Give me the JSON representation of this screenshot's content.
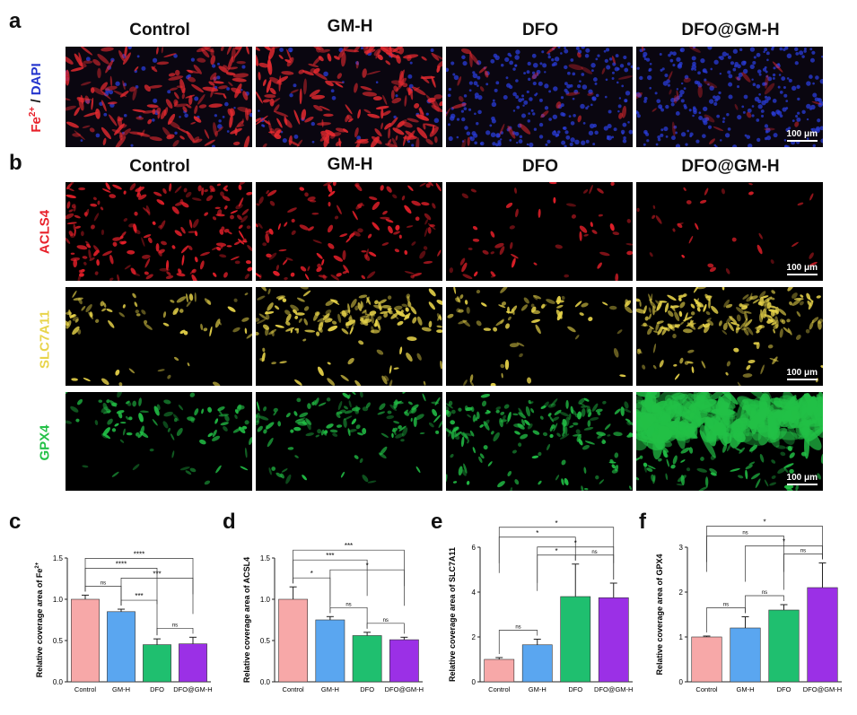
{
  "panel_a": {
    "letter": "a",
    "columns": [
      "Control",
      "GM-H",
      "DFO",
      "DFO@GM-H"
    ],
    "row_label_part1": "Fe",
    "row_label_sup": "2+",
    "row_label_sep": " / ",
    "row_label_part2": "DAPI",
    "scale_bar": "100 μm"
  },
  "panel_b": {
    "letter": "b",
    "columns": [
      "Control",
      "GM-H",
      "DFO",
      "DFO@GM-H"
    ],
    "rows": [
      {
        "label": "ACLS4",
        "color": "#e8202a",
        "scale_bar": "100 μm"
      },
      {
        "label": "SLC7A11",
        "color": "#e8d44a",
        "scale_bar": "100 μm"
      },
      {
        "label": "GPX4",
        "color": "#22c046",
        "scale_bar": "100 μm"
      }
    ]
  },
  "chart_data": [
    {
      "panel": "c",
      "type": "bar",
      "categories": [
        "Control",
        "GM-H",
        "DFO",
        "DFO@GM-H"
      ],
      "values": [
        1.0,
        0.85,
        0.45,
        0.46
      ],
      "errors": [
        0.05,
        0.03,
        0.07,
        0.08
      ],
      "ylabel_main": "Relative coverage area of Fe",
      "ylabel_sup": "2+",
      "ylim": [
        0,
        1.5
      ],
      "ticks": [
        0.0,
        0.5,
        1.0,
        1.5
      ],
      "tick_labels": [
        "0.0",
        "0.5",
        "1.0",
        "1.5"
      ],
      "colors": [
        "#f7a8a8",
        "#5aa6f0",
        "#1fbf6f",
        "#9b30e6"
      ],
      "brackets": [
        {
          "from": 0,
          "to": 3,
          "label": "****",
          "level": 4
        },
        {
          "from": 0,
          "to": 2,
          "label": "****",
          "level": 3
        },
        {
          "from": 1,
          "to": 3,
          "label": "***",
          "level": 2
        },
        {
          "from": 0,
          "to": 1,
          "label": "ns",
          "level": 1
        },
        {
          "from": 1,
          "to": 2,
          "label": "***",
          "level": 1
        },
        {
          "from": 2,
          "to": 3,
          "label": "ns",
          "level": 1
        }
      ]
    },
    {
      "panel": "d",
      "type": "bar",
      "categories": [
        "Control",
        "GM-H",
        "DFO",
        "DFO@GM-H"
      ],
      "values": [
        1.0,
        0.75,
        0.56,
        0.51
      ],
      "errors": [
        0.15,
        0.04,
        0.04,
        0.03
      ],
      "ylabel_main": "Relative coverage area of ACSL4",
      "ylabel_sup": "",
      "ylim": [
        0,
        1.5
      ],
      "ticks": [
        0.0,
        0.5,
        1.0,
        1.5
      ],
      "tick_labels": [
        "0.0",
        "0.5",
        "1.0",
        "1.5"
      ],
      "colors": [
        "#f7a8a8",
        "#5aa6f0",
        "#1fbf6f",
        "#9b30e6"
      ],
      "brackets": [
        {
          "from": 0,
          "to": 3,
          "label": "***",
          "level": 4
        },
        {
          "from": 0,
          "to": 2,
          "label": "***",
          "level": 3
        },
        {
          "from": 1,
          "to": 3,
          "label": "*",
          "level": 2
        },
        {
          "from": 0,
          "to": 1,
          "label": "*",
          "level": 1
        },
        {
          "from": 1,
          "to": 2,
          "label": "ns",
          "level": 1
        },
        {
          "from": 2,
          "to": 3,
          "label": "ns",
          "level": 1
        }
      ]
    },
    {
      "panel": "e",
      "type": "bar",
      "categories": [
        "Control",
        "GM-H",
        "DFO",
        "DFO@GM-H"
      ],
      "values": [
        1.0,
        1.65,
        3.8,
        3.75
      ],
      "errors": [
        0.08,
        0.25,
        1.45,
        0.65
      ],
      "ylabel_main": "Relative coverage area of SLC7A11",
      "ylabel_sup": "",
      "ylim": [
        0,
        6
      ],
      "ticks": [
        0,
        2,
        4,
        6
      ],
      "tick_labels": [
        "0",
        "2",
        "4",
        "6"
      ],
      "colors": [
        "#f7a8a8",
        "#5aa6f0",
        "#1fbf6f",
        "#9b30e6"
      ],
      "brackets": [
        {
          "from": 0,
          "to": 3,
          "label": "*",
          "level": 4
        },
        {
          "from": 0,
          "to": 2,
          "label": "*",
          "level": 3
        },
        {
          "from": 1,
          "to": 3,
          "label": "*",
          "level": 2
        },
        {
          "from": 0,
          "to": 1,
          "label": "ns",
          "level": 1
        },
        {
          "from": 1,
          "to": 2,
          "label": "*",
          "level": 1
        },
        {
          "from": 2,
          "to": 3,
          "label": "ns",
          "level": 1
        }
      ]
    },
    {
      "panel": "f",
      "type": "bar",
      "categories": [
        "Control",
        "GM-H",
        "DFO",
        "DFO@GM-H"
      ],
      "values": [
        1.0,
        1.2,
        1.6,
        2.1
      ],
      "errors": [
        0.02,
        0.25,
        0.12,
        0.55
      ],
      "ylabel_main": "Relative coverage area of GPX4",
      "ylabel_sup": "",
      "ylim": [
        0,
        3
      ],
      "ticks": [
        0,
        1,
        2,
        3
      ],
      "tick_labels": [
        "0",
        "1",
        "2",
        "3"
      ],
      "colors": [
        "#f7a8a8",
        "#5aa6f0",
        "#1fbf6f",
        "#9b30e6"
      ],
      "brackets": [
        {
          "from": 0,
          "to": 3,
          "label": "*",
          "level": 4
        },
        {
          "from": 0,
          "to": 2,
          "label": "ns",
          "level": 3
        },
        {
          "from": 1,
          "to": 3,
          "label": "*",
          "level": 2
        },
        {
          "from": 0,
          "to": 1,
          "label": "ns",
          "level": 1
        },
        {
          "from": 1,
          "to": 2,
          "label": "ns",
          "level": 1
        },
        {
          "from": 2,
          "to": 3,
          "label": "ns",
          "level": 1
        }
      ]
    }
  ]
}
